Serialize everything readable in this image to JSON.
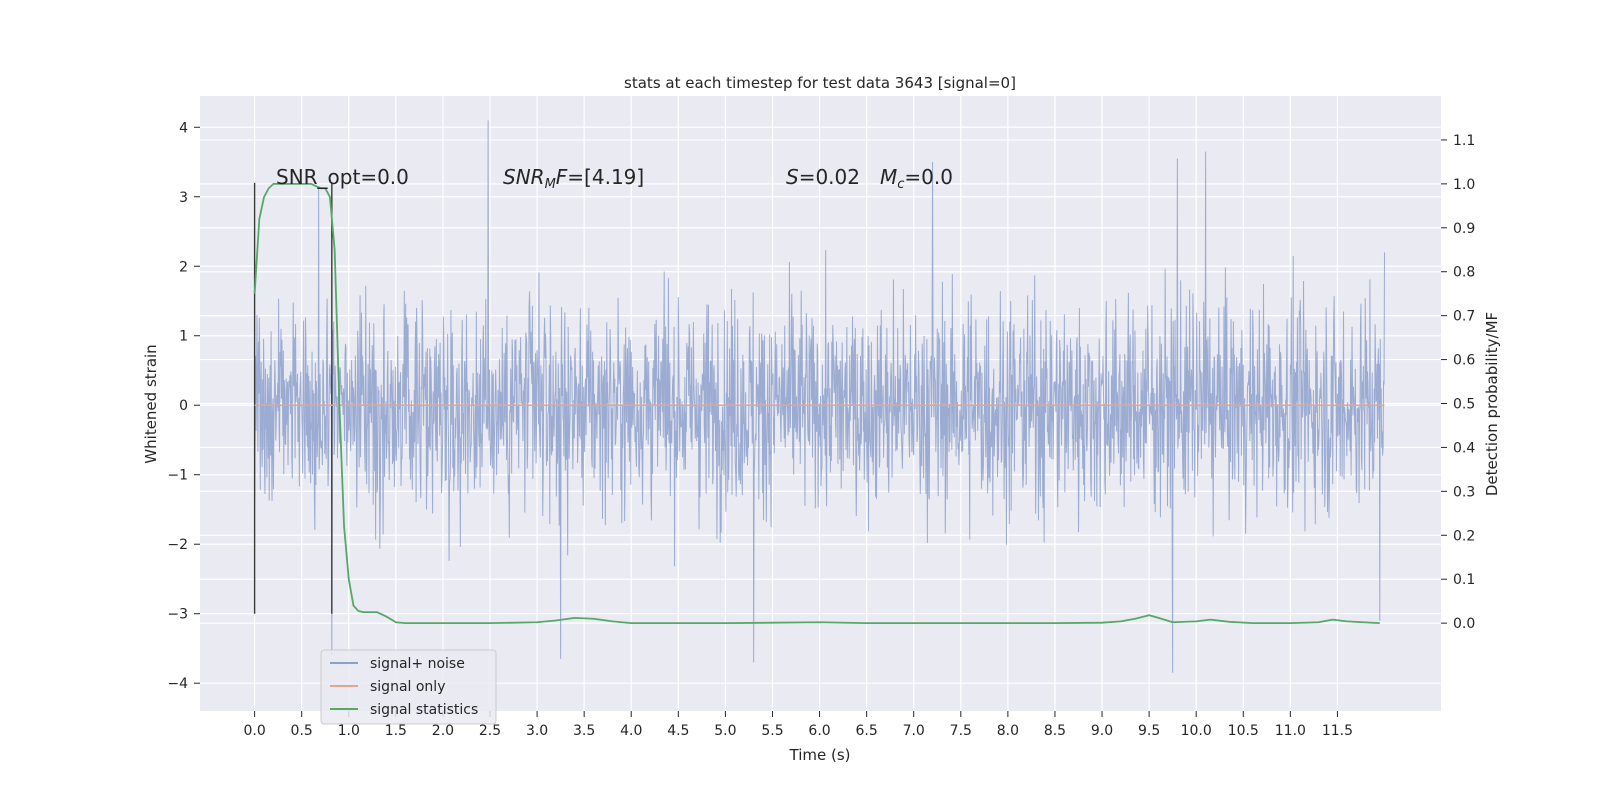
{
  "chart_data": {
    "type": "line",
    "title": "stats at each timestep for test data 3643 [signal=0]",
    "xlabel": "Time (s)",
    "ylabel": "Whitened strain",
    "ylabel_right": "Detection probability/MF",
    "xlim": [
      -0.58,
      12.6
    ],
    "ylim": [
      -4.4,
      4.45
    ],
    "ylim_right": [
      -0.2,
      1.2
    ],
    "x_ticks": [
      "0.0",
      "0.5",
      "1.0",
      "1.5",
      "2.0",
      "2.5",
      "3.0",
      "3.5",
      "4.0",
      "4.5",
      "5.0",
      "5.5",
      "6.0",
      "6.5",
      "7.0",
      "7.5",
      "8.0",
      "8.5",
      "9.0",
      "9.5",
      "10.0",
      "10.5",
      "11.0",
      "11.5"
    ],
    "y_ticks_left": [
      "4",
      "3",
      "2",
      "1",
      "0",
      "−1",
      "−2",
      "−3",
      "−4"
    ],
    "y_ticks_right": [
      "1.1",
      "1.0",
      "0.9",
      "0.8",
      "0.7",
      "0.6",
      "0.5",
      "0.4",
      "0.3",
      "0.2",
      "0.1",
      "0.0"
    ],
    "grid": true,
    "legend_position": "lower-left",
    "annotations": {
      "snr_opt": "SNR_opt=0.0",
      "snr_mf_sym": "SNR",
      "snr_mf_sub": "M",
      "snr_mf_sym2": "F",
      "snr_mf_val": "=[4.19]",
      "s_sym": "S",
      "s_val": "=0.02",
      "mc_sym": "M",
      "mc_sub": "c",
      "mc_val": "=0.0"
    },
    "window_markers_x": [
      0.0,
      0.82
    ],
    "series": [
      {
        "name": "signal+ noise",
        "color": "#8da0cb",
        "kind": "noise",
        "x_range": [
          0.0,
          12.0
        ],
        "sample_envelope": [
          -3.7,
          4.1
        ],
        "notable_peaks": [
          [
            2.48,
            4.1
          ],
          [
            0.68,
            3.15
          ],
          [
            10.1,
            3.65
          ],
          [
            9.8,
            3.55
          ],
          [
            7.2,
            3.5
          ],
          [
            12.0,
            2.2
          ]
        ],
        "notable_troughs": [
          [
            3.25,
            -3.65
          ],
          [
            5.3,
            -3.7
          ],
          [
            9.75,
            -3.85
          ],
          [
            0.82,
            -3.6
          ],
          [
            11.95,
            -3.1
          ]
        ]
      },
      {
        "name": "signal only",
        "color": "#e5a58f",
        "values_constant": 0.0,
        "x_range": [
          0.0,
          12.0
        ]
      },
      {
        "name": "signal statistics",
        "color": "#55a868",
        "axis": "right",
        "x": [
          0.0,
          0.05,
          0.1,
          0.15,
          0.2,
          0.3,
          0.4,
          0.5,
          0.6,
          0.7,
          0.75,
          0.8,
          0.85,
          0.9,
          0.95,
          1.0,
          1.05,
          1.1,
          1.15,
          1.2,
          1.3,
          1.4,
          1.5,
          1.6,
          2.0,
          2.5,
          3.0,
          3.2,
          3.4,
          3.6,
          3.8,
          4.0,
          4.5,
          5.0,
          5.5,
          6.0,
          6.5,
          7.0,
          7.5,
          8.0,
          8.5,
          9.0,
          9.2,
          9.35,
          9.5,
          9.6,
          9.75,
          10.0,
          10.15,
          10.35,
          10.6,
          11.0,
          11.3,
          11.45,
          11.6,
          11.95
        ],
        "values": [
          0.75,
          0.92,
          0.97,
          0.99,
          1.0,
          1.0,
          1.0,
          1.0,
          1.0,
          0.99,
          0.99,
          0.97,
          0.85,
          0.5,
          0.22,
          0.1,
          0.04,
          0.028,
          0.025,
          0.025,
          0.025,
          0.015,
          0.002,
          0.0,
          0.0,
          0.0,
          0.002,
          0.006,
          0.012,
          0.01,
          0.004,
          0.0,
          0.0,
          0.0,
          0.001,
          0.002,
          0.0,
          0.0,
          0.0,
          0.0,
          0.0,
          0.001,
          0.004,
          0.01,
          0.018,
          0.012,
          0.002,
          0.004,
          0.008,
          0.003,
          0.0,
          0.0,
          0.002,
          0.008,
          0.004,
          0.0
        ]
      }
    ]
  }
}
